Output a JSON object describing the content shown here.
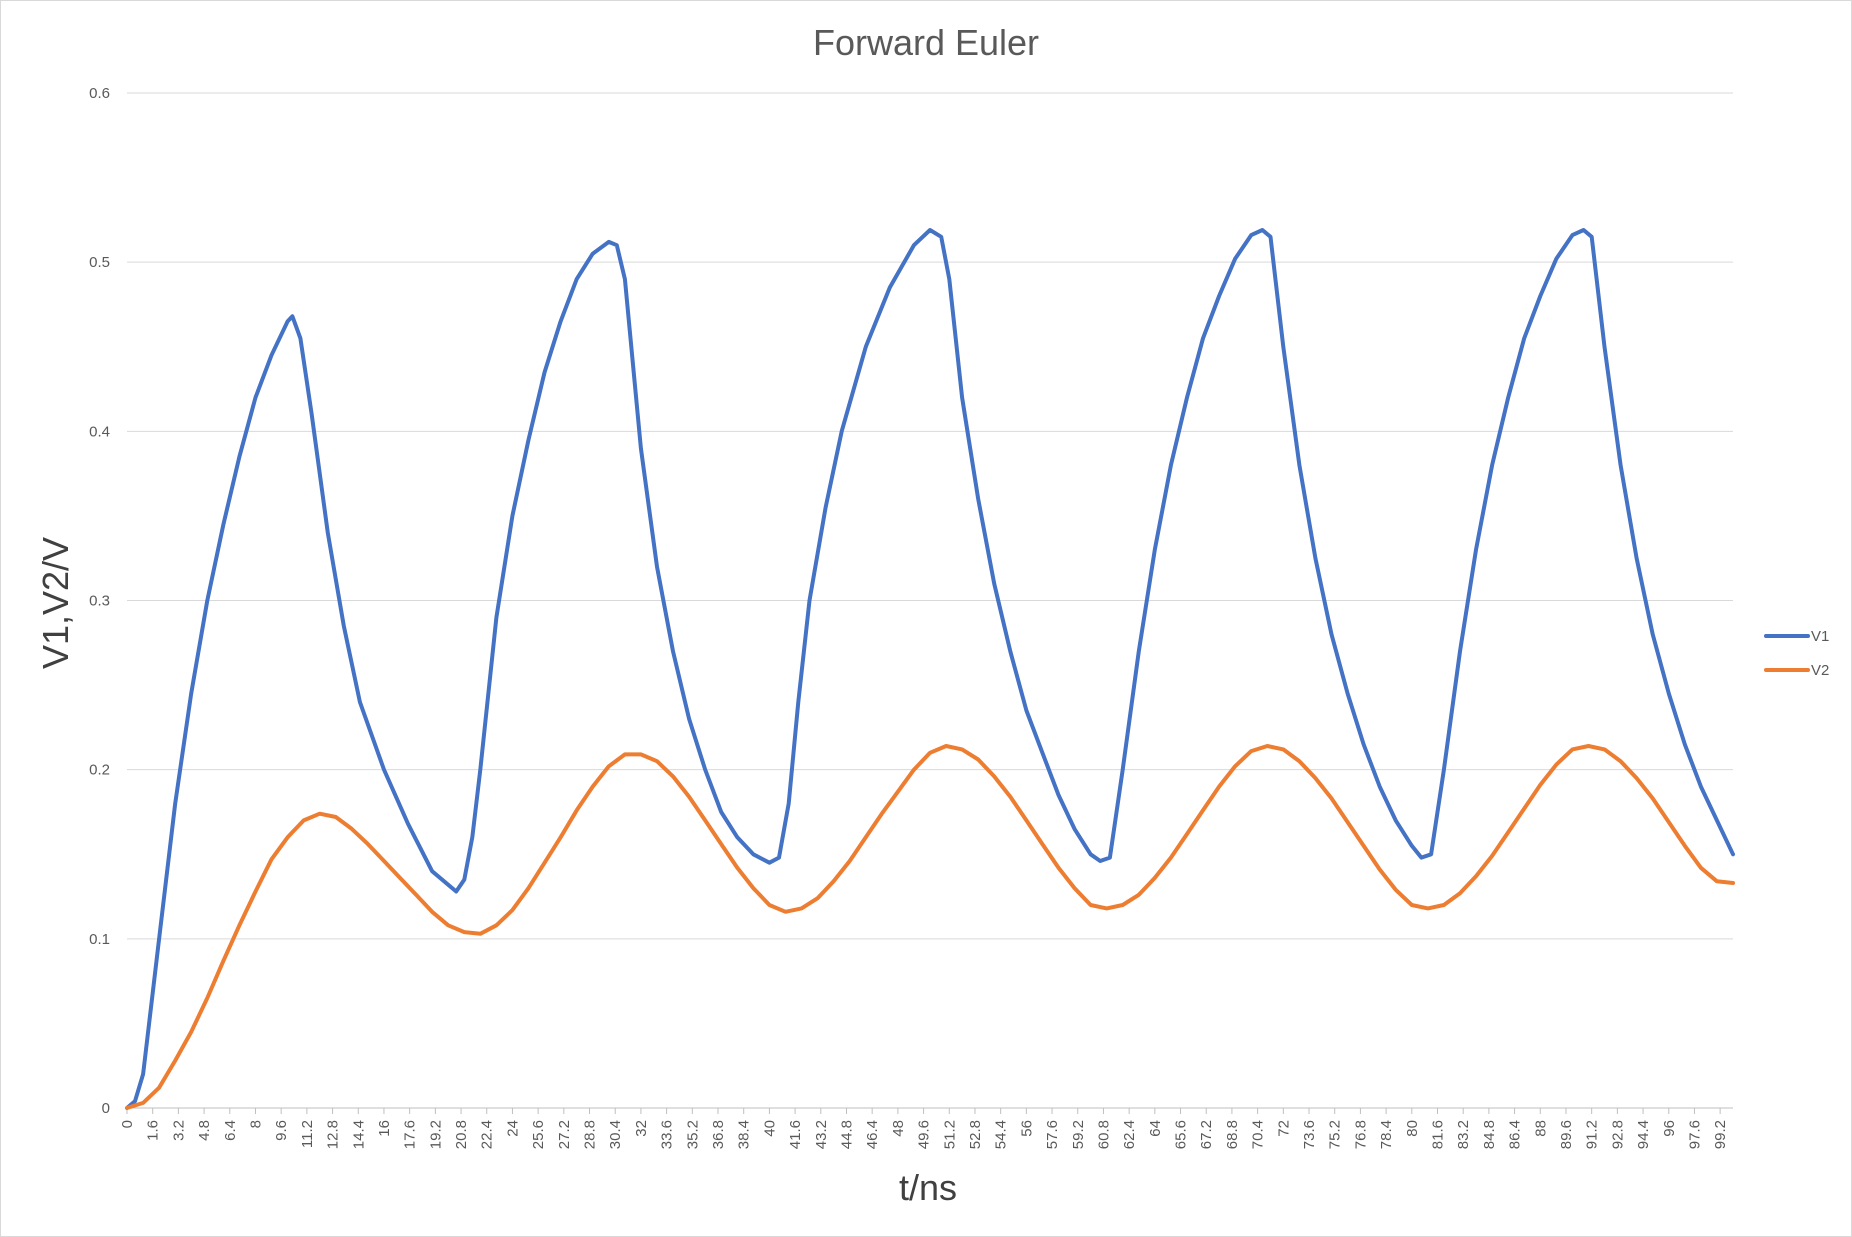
{
  "chart_data": {
    "type": "line",
    "title": "Forward Euler",
    "xlabel": "t/ns",
    "ylabel": "V1,V2/V",
    "xlim": [
      0,
      100
    ],
    "ylim": [
      0,
      0.6
    ],
    "y_ticks": [
      "0",
      "0.1",
      "0.2",
      "0.3",
      "0.4",
      "0.5",
      "0.6"
    ],
    "x_ticks": [
      "0",
      "1.6",
      "3.2",
      "4.8",
      "6.4",
      "8",
      "9.6",
      "11.2",
      "12.8",
      "14.4",
      "16",
      "17.6",
      "19.2",
      "20.8",
      "22.4",
      "24",
      "25.6",
      "27.2",
      "28.8",
      "30.4",
      "32",
      "33.6",
      "35.2",
      "36.8",
      "38.4",
      "40",
      "41.6",
      "43.2",
      "44.8",
      "46.4",
      "48",
      "49.6",
      "51.2",
      "52.8",
      "54.4",
      "56",
      "57.6",
      "59.2",
      "60.8",
      "62.4",
      "64",
      "65.6",
      "67.2",
      "68.8",
      "70.4",
      "72",
      "73.6",
      "75.2",
      "76.8",
      "78.4",
      "80",
      "81.6",
      "83.2",
      "84.8",
      "86.4",
      "88",
      "89.6",
      "91.2",
      "92.8",
      "94.4",
      "96",
      "97.6",
      "99.2"
    ],
    "grid": "horizontal",
    "legend": "right",
    "series": [
      {
        "name": "V1",
        "color": "#4472c4",
        "x": [
          0,
          0.5,
          1,
          1.5,
          2,
          3,
          4,
          5,
          6,
          7,
          8,
          9,
          10,
          10.3,
          10.8,
          11.5,
          12.5,
          13.5,
          14.5,
          16,
          17.5,
          19,
          20.5,
          21,
          21.5,
          22,
          23,
          24,
          25,
          26,
          27,
          28,
          29,
          30,
          30.5,
          31,
          32,
          33,
          34,
          35,
          36,
          37,
          38,
          39,
          40,
          40.6,
          41.2,
          41.8,
          42.5,
          43.5,
          44.5,
          46,
          47.5,
          49,
          50,
          50.7,
          51.2,
          52,
          53,
          54,
          55,
          56,
          57,
          58,
          59,
          60,
          60.6,
          61.2,
          62,
          63,
          64,
          65,
          66,
          67,
          68,
          69,
          70,
          70.7,
          71.2,
          72,
          73,
          74,
          75,
          76,
          77,
          78,
          79,
          80,
          80.6,
          81.2,
          82,
          83,
          84,
          85,
          86,
          87,
          88,
          89,
          90,
          90.7,
          91.2,
          92,
          93,
          94,
          95,
          96,
          97,
          98,
          99,
          100
        ],
        "y": [
          0,
          0.004,
          0.02,
          0.06,
          0.1,
          0.18,
          0.245,
          0.3,
          0.345,
          0.385,
          0.42,
          0.445,
          0.465,
          0.468,
          0.455,
          0.41,
          0.34,
          0.285,
          0.24,
          0.2,
          0.168,
          0.14,
          0.128,
          0.135,
          0.16,
          0.2,
          0.29,
          0.35,
          0.395,
          0.435,
          0.465,
          0.49,
          0.505,
          0.512,
          0.51,
          0.49,
          0.39,
          0.32,
          0.27,
          0.23,
          0.2,
          0.175,
          0.16,
          0.15,
          0.145,
          0.148,
          0.18,
          0.24,
          0.3,
          0.355,
          0.4,
          0.45,
          0.485,
          0.51,
          0.519,
          0.515,
          0.49,
          0.42,
          0.36,
          0.31,
          0.27,
          0.235,
          0.21,
          0.185,
          0.165,
          0.15,
          0.146,
          0.148,
          0.2,
          0.27,
          0.33,
          0.38,
          0.42,
          0.455,
          0.48,
          0.502,
          0.516,
          0.519,
          0.515,
          0.45,
          0.38,
          0.325,
          0.28,
          0.245,
          0.215,
          0.19,
          0.17,
          0.155,
          0.148,
          0.15,
          0.2,
          0.27,
          0.33,
          0.38,
          0.42,
          0.455,
          0.48,
          0.502,
          0.516,
          0.519,
          0.515,
          0.45,
          0.38,
          0.325,
          0.28,
          0.245,
          0.215,
          0.19,
          0.17,
          0.15
        ]
      },
      {
        "name": "V2",
        "color": "#ed7d31",
        "x": [
          0,
          1,
          2,
          3,
          4,
          5,
          6,
          7,
          8,
          9,
          10,
          11,
          12,
          13,
          14,
          15,
          16,
          17,
          18,
          19,
          20,
          21,
          22,
          23,
          24,
          25,
          26,
          27,
          28,
          29,
          30,
          31,
          32,
          33,
          34,
          35,
          36,
          37,
          38,
          39,
          40,
          41,
          42,
          43,
          44,
          45,
          46,
          47,
          48,
          49,
          50,
          51,
          52,
          53,
          54,
          55,
          56,
          57,
          58,
          59,
          60,
          61,
          62,
          63,
          64,
          65,
          66,
          67,
          68,
          69,
          70,
          71,
          72,
          73,
          74,
          75,
          76,
          77,
          78,
          79,
          80,
          81,
          82,
          83,
          84,
          85,
          86,
          87,
          88,
          89,
          90,
          91,
          92,
          93,
          94,
          95,
          96,
          97,
          98,
          99,
          100
        ],
        "y": [
          0,
          0.003,
          0.012,
          0.028,
          0.045,
          0.065,
          0.087,
          0.108,
          0.128,
          0.147,
          0.16,
          0.17,
          0.174,
          0.172,
          0.165,
          0.156,
          0.146,
          0.136,
          0.126,
          0.116,
          0.108,
          0.104,
          0.103,
          0.108,
          0.117,
          0.13,
          0.145,
          0.16,
          0.176,
          0.19,
          0.202,
          0.209,
          0.209,
          0.205,
          0.196,
          0.184,
          0.17,
          0.156,
          0.142,
          0.13,
          0.12,
          0.116,
          0.118,
          0.124,
          0.134,
          0.146,
          0.16,
          0.174,
          0.187,
          0.2,
          0.21,
          0.214,
          0.212,
          0.206,
          0.196,
          0.184,
          0.17,
          0.156,
          0.142,
          0.13,
          0.12,
          0.118,
          0.12,
          0.126,
          0.136,
          0.148,
          0.162,
          0.176,
          0.19,
          0.202,
          0.211,
          0.214,
          0.212,
          0.205,
          0.195,
          0.183,
          0.169,
          0.155,
          0.141,
          0.129,
          0.12,
          0.118,
          0.12,
          0.127,
          0.137,
          0.149,
          0.163,
          0.177,
          0.191,
          0.203,
          0.212,
          0.214,
          0.212,
          0.205,
          0.195,
          0.183,
          0.169,
          0.155,
          0.142,
          0.134,
          0.133
        ]
      }
    ]
  }
}
